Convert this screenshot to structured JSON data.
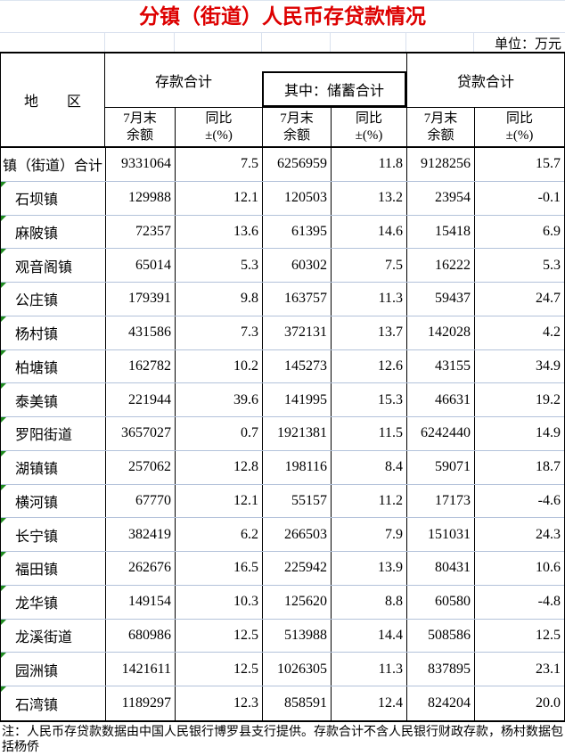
{
  "title": "分镇（街道）人民币存贷款情况",
  "unit_label": "单位：万元",
  "header": {
    "region": "地　　区",
    "deposit_group": "存款合计",
    "savings_group": "其中：储蓄合计",
    "loan_group": "贷款合计",
    "balance_line1": "7月末",
    "balance_line2": "余额",
    "yoy_line1": "同比",
    "yoy_line2": "±(%)"
  },
  "columns": [
    "地区",
    "存款合计7月末余额",
    "存款合计同比±(%)",
    "储蓄合计7月末余额",
    "储蓄合计同比±(%)",
    "贷款合计7月末余额",
    "贷款合计同比±(%)"
  ],
  "rows": [
    {
      "name": "镇（街道）合计",
      "indent": false,
      "marker": false,
      "values": [
        "9331064",
        "7.5",
        "6256959",
        "11.8",
        "9128256",
        "15.7"
      ]
    },
    {
      "name": "石坝镇",
      "indent": true,
      "marker": true,
      "values": [
        "129988",
        "12.1",
        "120503",
        "13.2",
        "23954",
        "-0.1"
      ]
    },
    {
      "name": "麻陂镇",
      "indent": true,
      "marker": true,
      "values": [
        "72357",
        "13.6",
        "61395",
        "14.6",
        "15418",
        "6.9"
      ]
    },
    {
      "name": "观音阁镇",
      "indent": true,
      "marker": true,
      "values": [
        "65014",
        "5.3",
        "60302",
        "7.5",
        "16222",
        "5.3"
      ]
    },
    {
      "name": "公庄镇",
      "indent": true,
      "marker": true,
      "values": [
        "179391",
        "9.8",
        "163757",
        "11.3",
        "59437",
        "24.7"
      ]
    },
    {
      "name": "杨村镇",
      "indent": true,
      "marker": true,
      "values": [
        "431586",
        "7.3",
        "372131",
        "13.7",
        "142028",
        "4.2"
      ]
    },
    {
      "name": "柏塘镇",
      "indent": true,
      "marker": true,
      "values": [
        "162782",
        "10.2",
        "145273",
        "12.6",
        "43155",
        "34.9"
      ]
    },
    {
      "name": "泰美镇",
      "indent": true,
      "marker": true,
      "values": [
        "221944",
        "39.6",
        "141995",
        "15.3",
        "46631",
        "19.2"
      ]
    },
    {
      "name": "罗阳街道",
      "indent": true,
      "marker": true,
      "values": [
        "3657027",
        "0.7",
        "1921381",
        "11.5",
        "6242440",
        "14.9"
      ]
    },
    {
      "name": "湖镇镇",
      "indent": true,
      "marker": true,
      "values": [
        "257062",
        "12.8",
        "198116",
        "8.4",
        "59071",
        "18.7"
      ]
    },
    {
      "name": "横河镇",
      "indent": true,
      "marker": true,
      "values": [
        "67770",
        "12.1",
        "55157",
        "11.2",
        "17173",
        "-4.6"
      ]
    },
    {
      "name": "长宁镇",
      "indent": true,
      "marker": true,
      "values": [
        "382419",
        "6.2",
        "266503",
        "7.9",
        "151031",
        "24.3"
      ]
    },
    {
      "name": "福田镇",
      "indent": true,
      "marker": true,
      "values": [
        "262676",
        "16.5",
        "225942",
        "13.9",
        "80431",
        "10.6"
      ]
    },
    {
      "name": "龙华镇",
      "indent": true,
      "marker": true,
      "values": [
        "149154",
        "10.3",
        "125620",
        "8.8",
        "60580",
        "-4.8"
      ]
    },
    {
      "name": "龙溪街道",
      "indent": true,
      "marker": true,
      "values": [
        "680986",
        "12.5",
        "513988",
        "14.4",
        "508586",
        "12.5"
      ]
    },
    {
      "name": "园洲镇",
      "indent": true,
      "marker": true,
      "values": [
        "1421611",
        "12.5",
        "1026305",
        "11.3",
        "837895",
        "23.1"
      ]
    },
    {
      "name": "石湾镇",
      "indent": true,
      "marker": true,
      "values": [
        "1189297",
        "12.3",
        "858591",
        "12.4",
        "824204",
        "20.0"
      ]
    }
  ],
  "note_line1": "注：人民币存贷款数据由中国人民银行博罗县支行提供。存款合计不含人民银行财政存款，杨村数据包括杨侨",
  "note_line2": "。",
  "colors": {
    "title_text": "#dd0000",
    "black_border": "#000000",
    "light_grid": "#b3c2da",
    "marker_green": "#1e8a1e"
  }
}
